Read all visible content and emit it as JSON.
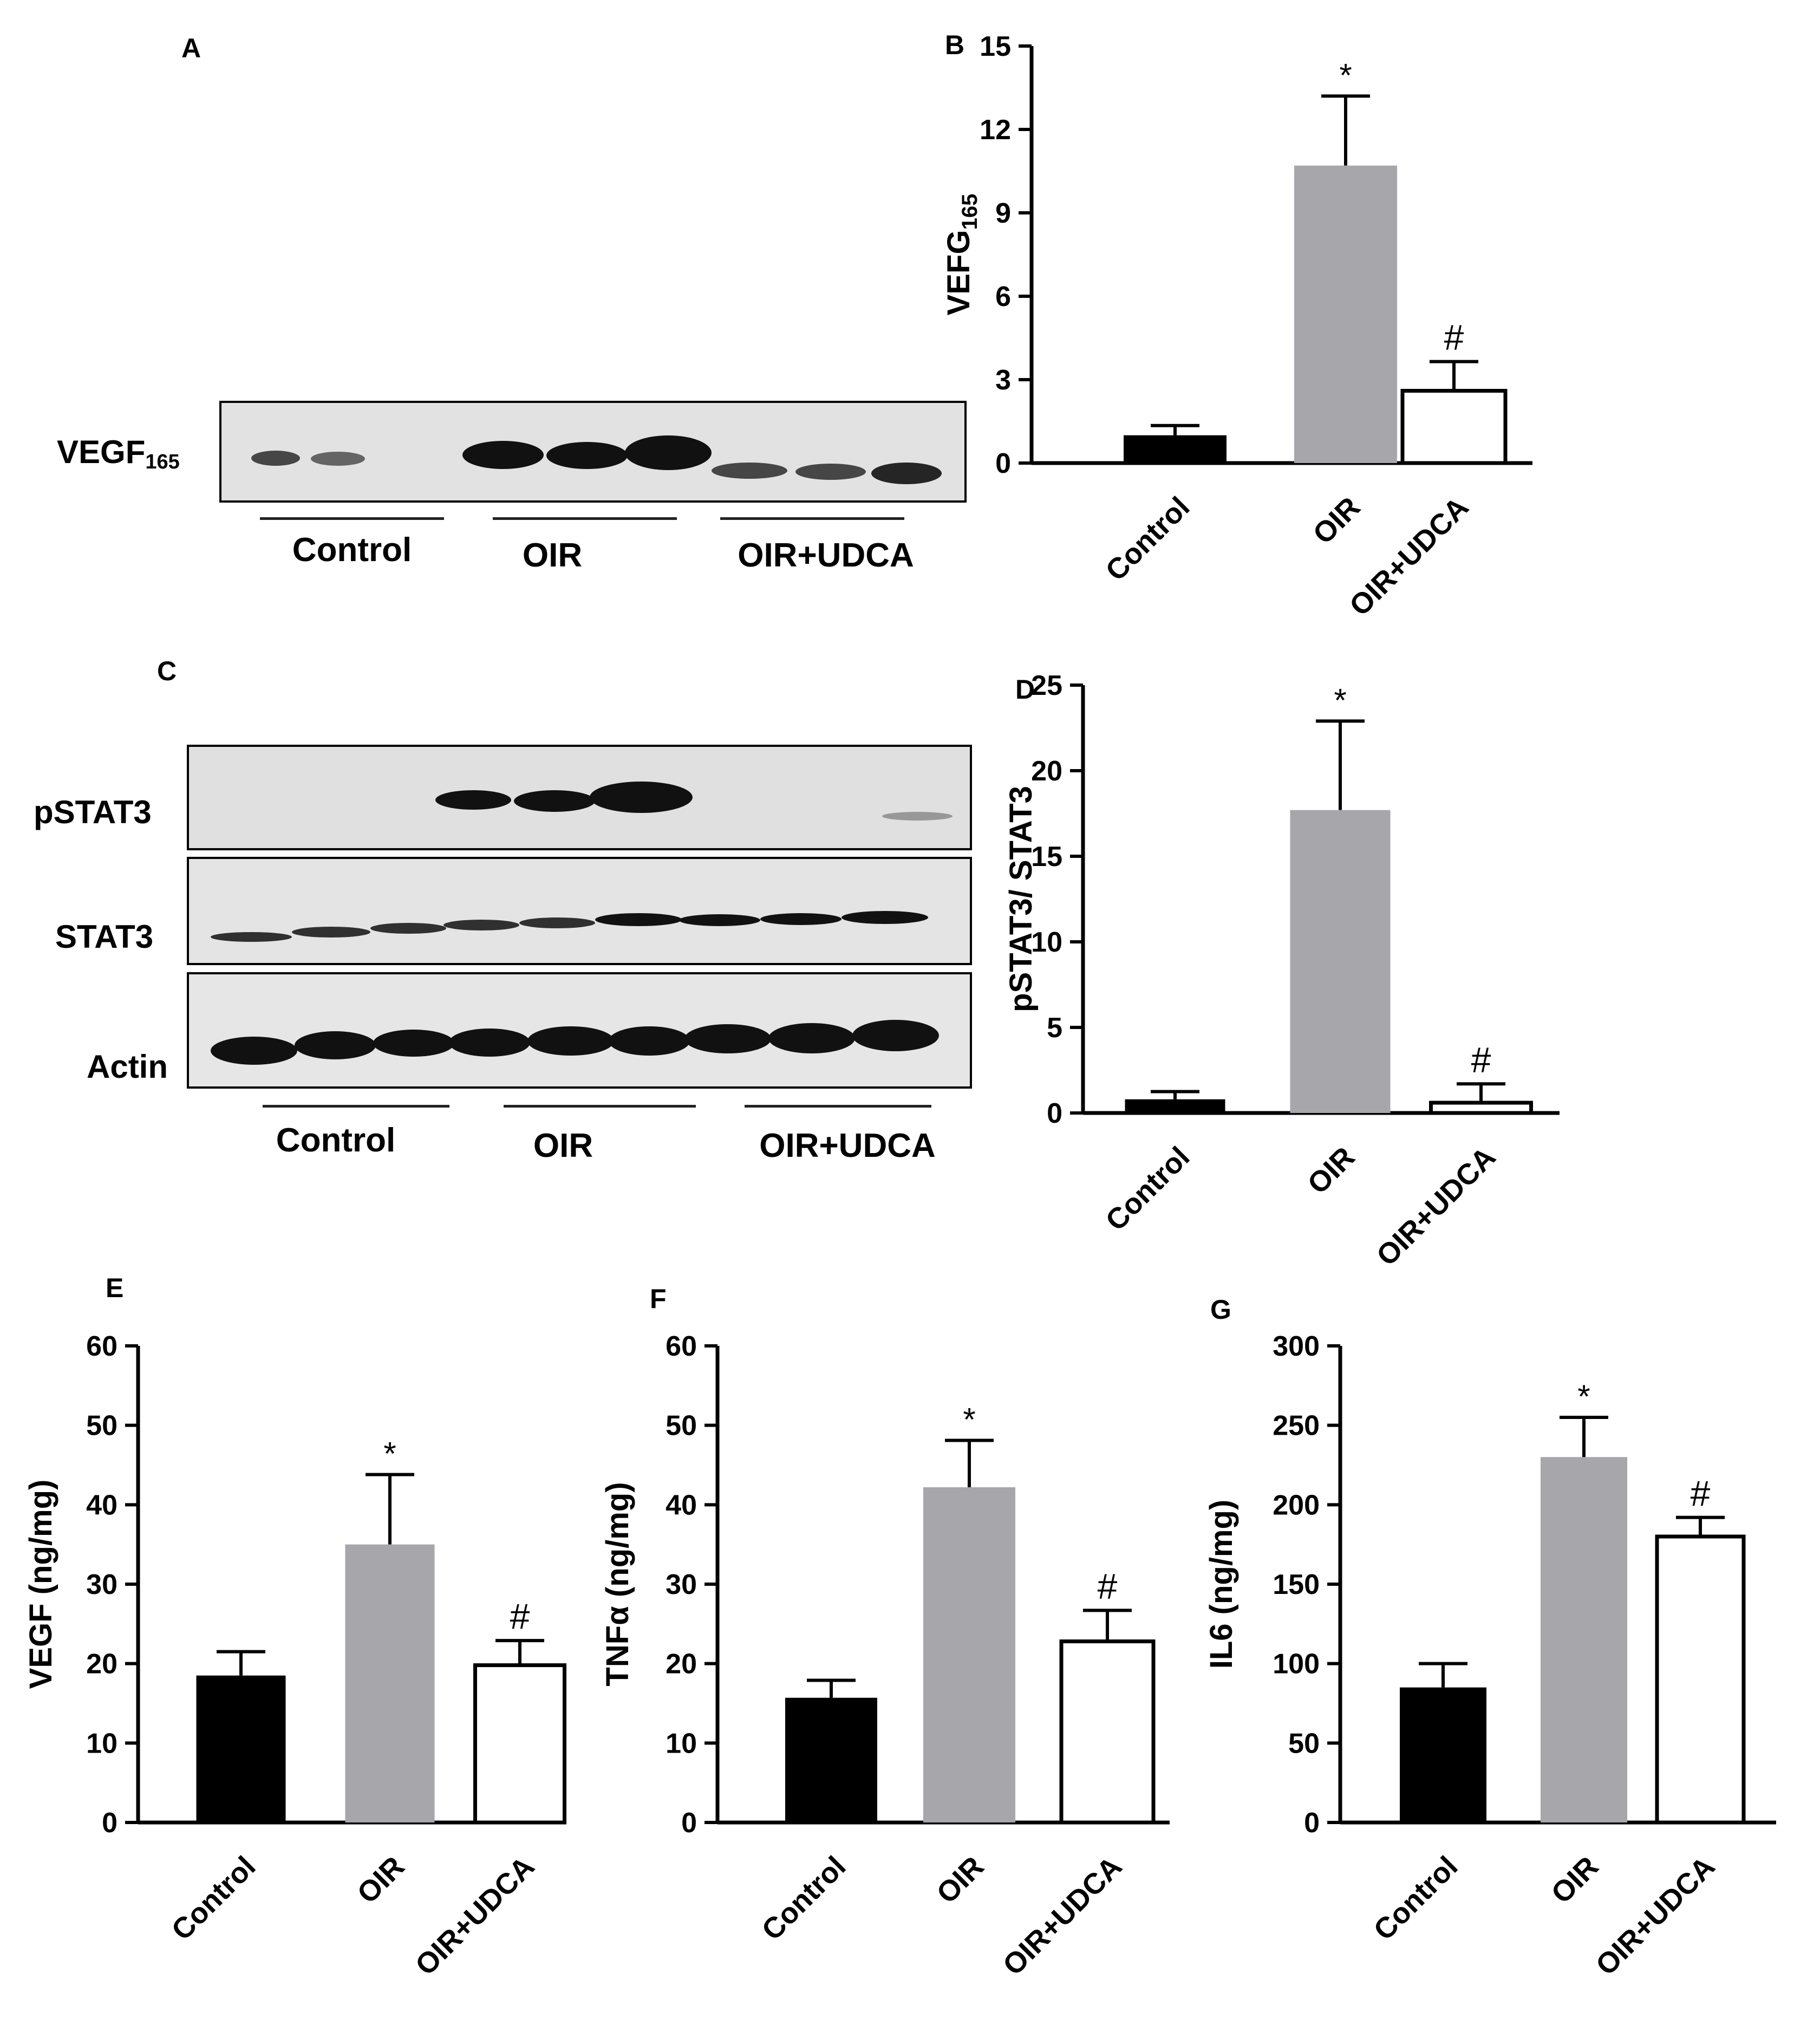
{
  "panels": {
    "A": {
      "letter": "A",
      "row_label": "VEGF",
      "row_sub": "165",
      "groups": [
        "Control",
        "OIR",
        "OIR+UDCA"
      ]
    },
    "C": {
      "letter": "C",
      "rows": [
        "pSTAT3",
        "STAT3",
        "Actin"
      ],
      "groups": [
        "Control",
        "OIR",
        "OIR+UDCA"
      ]
    }
  },
  "chart_data": [
    {
      "panel": "B",
      "type": "bar",
      "categories": [
        "Control",
        "OIR",
        "OIR+UDCA"
      ],
      "values": [
        1.0,
        10.7,
        2.6
      ],
      "errors": [
        0.35,
        2.5,
        1.05
      ],
      "annotations": [
        "",
        "*",
        "#"
      ],
      "ylabel": "VEFG",
      "ylabel_sub": "165",
      "ylim": [
        0,
        15
      ],
      "yticks": [
        0,
        3,
        6,
        9,
        12,
        15
      ],
      "colors": [
        "#000000",
        "#a6a6ab",
        "#ffffff"
      ]
    },
    {
      "panel": "D",
      "type": "bar",
      "categories": [
        "Control",
        "OIR",
        "OIR+UDCA"
      ],
      "values": [
        0.8,
        17.7,
        0.6
      ],
      "errors": [
        0.45,
        5.2,
        1.1
      ],
      "annotations": [
        "",
        "*",
        "#"
      ],
      "ylabel": "pSTAT3/ STAT3",
      "ylabel_sub": "",
      "ylim": [
        0,
        25
      ],
      "yticks": [
        0,
        5,
        10,
        15,
        20,
        25
      ],
      "colors": [
        "#000000",
        "#a6a6ab",
        "#ffffff"
      ]
    },
    {
      "panel": "E",
      "type": "bar",
      "categories": [
        "Control",
        "OIR",
        "OIR+UDCA"
      ],
      "values": [
        18.5,
        35.0,
        19.8
      ],
      "errors": [
        3.0,
        8.8,
        3.1
      ],
      "annotations": [
        "",
        "*",
        "#"
      ],
      "ylabel": "VEGF (ng/mg)",
      "ylabel_sub": "",
      "ylim": [
        0,
        60
      ],
      "yticks": [
        0,
        10,
        20,
        30,
        40,
        50,
        60
      ],
      "colors": [
        "#000000",
        "#a6a6ab",
        "#ffffff"
      ]
    },
    {
      "panel": "F",
      "type": "bar",
      "categories": [
        "Control",
        "OIR",
        "OIR+UDCA"
      ],
      "values": [
        15.7,
        42.2,
        22.8
      ],
      "errors": [
        2.2,
        5.9,
        3.9
      ],
      "annotations": [
        "",
        "*",
        "#"
      ],
      "ylabel": "TNFα (ng/mg)",
      "ylabel_sub": "",
      "ylim": [
        0,
        60
      ],
      "yticks": [
        0,
        10,
        20,
        30,
        40,
        50,
        60
      ],
      "colors": [
        "#000000",
        "#a6a6ab",
        "#ffffff"
      ]
    },
    {
      "panel": "G",
      "type": "bar",
      "categories": [
        "Control",
        "OIR",
        "OIR+UDCA"
      ],
      "values": [
        85,
        230,
        180
      ],
      "errors": [
        15,
        25,
        12
      ],
      "annotations": [
        "",
        "*",
        "#"
      ],
      "ylabel": "IL6 (ng/mg)",
      "ylabel_sub": "",
      "ylim": [
        0,
        300
      ],
      "yticks": [
        0,
        50,
        100,
        150,
        200,
        250,
        300
      ],
      "colors": [
        "#000000",
        "#a6a6ab",
        "#ffffff"
      ]
    }
  ]
}
